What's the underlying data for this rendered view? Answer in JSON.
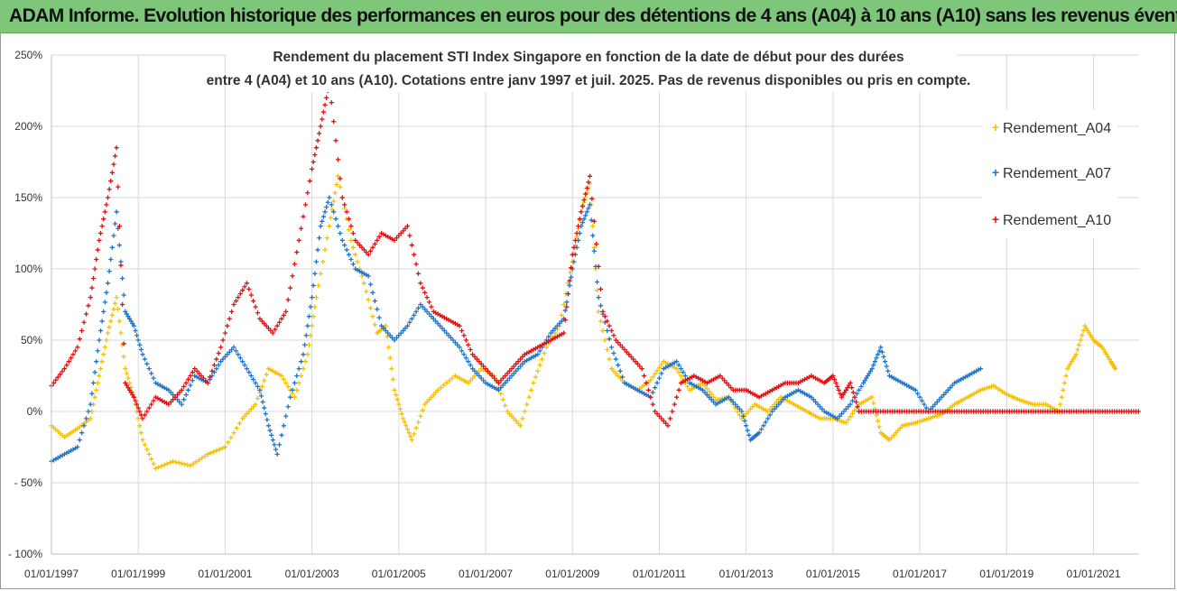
{
  "header": {
    "banner": "ADAM Informe. Evolution historique des performances en euros pour des détentions de 4 ans (A04) à 10 ans (A10) sans les revenus éventuels"
  },
  "chart_data": {
    "type": "scatter",
    "title_line1": "Rendement du placement STI Index Singapore en fonction de la date de début pour des durées",
    "title_line2": "entre 4 (A04) et 10 ans (A10). Cotations entre janv 1997 et juil. 2025. Pas de revenus disponibles ou pris en compte.",
    "xlabel": "",
    "ylabel": "",
    "ylim": [
      -100,
      250
    ],
    "xlim": [
      1997.0,
      2022.05
    ],
    "grid": true,
    "legend_position": "right",
    "y_ticks": [
      {
        "value": 250,
        "label": "250%"
      },
      {
        "value": 200,
        "label": "200%"
      },
      {
        "value": 150,
        "label": "150%"
      },
      {
        "value": 100,
        "label": "100%"
      },
      {
        "value": 50,
        "label": "50%"
      },
      {
        "value": 0,
        "label": "0%"
      },
      {
        "value": -50,
        "label": "- 50%"
      },
      {
        "value": -100,
        "label": "- 100%"
      }
    ],
    "x_ticks": [
      {
        "value": 1997,
        "label": "01/01/1997"
      },
      {
        "value": 1999,
        "label": "01/01/1999"
      },
      {
        "value": 2001,
        "label": "01/01/2001"
      },
      {
        "value": 2003,
        "label": "01/01/2003"
      },
      {
        "value": 2005,
        "label": "01/01/2005"
      },
      {
        "value": 2007,
        "label": "01/01/2007"
      },
      {
        "value": 2009,
        "label": "01/01/2009"
      },
      {
        "value": 2011,
        "label": "01/01/2011"
      },
      {
        "value": 2013,
        "label": "01/01/2013"
      },
      {
        "value": 2015,
        "label": "01/01/2015"
      },
      {
        "value": 2017,
        "label": "01/01/2017"
      },
      {
        "value": 2019,
        "label": "01/01/2019"
      },
      {
        "value": 2021,
        "label": "01/01/2021"
      }
    ],
    "series": [
      {
        "name": "Rendement_A04",
        "color": "#f5c000",
        "x": [
          1997.0,
          1997.3,
          1997.6,
          1997.9,
          1998.1,
          1998.3,
          1998.5,
          1998.7,
          1998.9,
          1999.1,
          1999.4,
          1999.8,
          2000.2,
          2000.6,
          2001.0,
          2001.4,
          2001.7,
          2002.0,
          2002.3,
          2002.6,
          2002.9,
          2003.1,
          2003.4,
          2003.6,
          2003.9,
          2004.2,
          2004.5,
          2004.7,
          2004.9,
          2005.1,
          2005.3,
          2005.6,
          2005.9,
          2006.3,
          2006.6,
          2006.9,
          2007.2,
          2007.5,
          2007.8,
          2008.1,
          2008.4,
          2008.7,
          2009.0,
          2009.2,
          2009.4,
          2009.6,
          2009.9,
          2010.2,
          2010.5,
          2010.8,
          2011.1,
          2011.4,
          2011.7,
          2012.0,
          2012.3,
          2012.6,
          2012.9,
          2013.2,
          2013.5,
          2013.8,
          2014.1,
          2014.4,
          2014.7,
          2015.0,
          2015.3,
          2015.6,
          2015.9,
          2016.1,
          2016.3,
          2016.6,
          2016.9,
          2017.2,
          2017.5,
          2017.8,
          2018.1,
          2018.4,
          2018.7,
          2019.0,
          2019.3,
          2019.6,
          2019.9,
          2020.2,
          2020.4,
          2020.6,
          2020.8,
          2021.0,
          2021.2,
          2021.4,
          2021.5
        ],
        "values": [
          -10,
          -18,
          -12,
          -5,
          25,
          55,
          80,
          30,
          10,
          -20,
          -40,
          -35,
          -38,
          -30,
          -25,
          -5,
          5,
          30,
          25,
          10,
          40,
          80,
          130,
          165,
          120,
          90,
          55,
          60,
          15,
          -5,
          -20,
          5,
          15,
          25,
          20,
          30,
          25,
          0,
          -10,
          20,
          45,
          60,
          105,
          140,
          160,
          70,
          30,
          20,
          15,
          22,
          35,
          30,
          15,
          20,
          8,
          10,
          -5,
          5,
          0,
          10,
          5,
          0,
          -5,
          -5,
          -8,
          5,
          10,
          -15,
          -20,
          -10,
          -8,
          -5,
          -2,
          5,
          10,
          15,
          18,
          12,
          8,
          5,
          5,
          0,
          30,
          40,
          60,
          50,
          45,
          35,
          30
        ]
      },
      {
        "name": "Rendement_A07",
        "color": "#1f74c7",
        "x": [
          1997.0,
          1997.3,
          1997.6,
          1997.9,
          1998.1,
          1998.3,
          1998.5,
          1998.7,
          1998.9,
          1999.1,
          1999.4,
          1999.7,
          2000.0,
          2000.3,
          2000.6,
          2000.9,
          2001.2,
          2001.5,
          2001.8,
          2002.0,
          2002.2,
          2002.5,
          2002.8,
          2003.0,
          2003.2,
          2003.4,
          2003.7,
          2004.0,
          2004.3,
          2004.6,
          2004.9,
          2005.2,
          2005.5,
          2005.8,
          2006.1,
          2006.4,
          2006.7,
          2007.0,
          2007.3,
          2007.6,
          2007.9,
          2008.2,
          2008.5,
          2008.8,
          2009.0,
          2009.2,
          2009.4,
          2009.6,
          2009.9,
          2010.2,
          2010.5,
          2010.8,
          2011.1,
          2011.4,
          2011.7,
          2012.0,
          2012.3,
          2012.6,
          2012.9,
          2013.1,
          2013.3,
          2013.6,
          2013.9,
          2014.2,
          2014.5,
          2014.8,
          2015.1,
          2015.4,
          2015.7,
          2015.9,
          2016.1,
          2016.3,
          2016.6,
          2016.9,
          2017.2,
          2017.5,
          2017.8,
          2018.1,
          2018.4
        ],
        "values": [
          -35,
          -30,
          -25,
          5,
          50,
          90,
          140,
          70,
          60,
          40,
          20,
          15,
          5,
          25,
          20,
          35,
          45,
          30,
          15,
          -10,
          -30,
          10,
          40,
          80,
          130,
          150,
          120,
          100,
          95,
          60,
          50,
          60,
          75,
          65,
          55,
          45,
          30,
          20,
          15,
          25,
          35,
          40,
          55,
          65,
          100,
          130,
          145,
          80,
          45,
          20,
          15,
          10,
          30,
          35,
          20,
          15,
          5,
          10,
          0,
          -20,
          -15,
          0,
          10,
          15,
          10,
          0,
          -5,
          5,
          20,
          30,
          45,
          25,
          20,
          15,
          0,
          10,
          20,
          25,
          30
        ]
      },
      {
        "name": "Rendement_A10",
        "color": "#e01010",
        "x": [
          1997.0,
          1997.3,
          1997.6,
          1997.9,
          1998.1,
          1998.3,
          1998.5,
          1998.7,
          1998.9,
          1999.1,
          1999.4,
          1999.7,
          2000.0,
          2000.3,
          2000.6,
          2000.9,
          2001.2,
          2001.5,
          2001.8,
          2002.1,
          2002.4,
          2002.7,
          2003.0,
          2003.2,
          2003.4,
          2003.7,
          2004.0,
          2004.3,
          2004.6,
          2004.9,
          2005.2,
          2005.5,
          2005.8,
          2006.1,
          2006.4,
          2006.7,
          2007.0,
          2007.3,
          2007.6,
          2007.9,
          2008.2,
          2008.5,
          2008.8,
          2009.0,
          2009.2,
          2009.4,
          2009.7,
          2010.0,
          2010.3,
          2010.6,
          2010.9,
          2011.2,
          2011.5,
          2011.8,
          2012.1,
          2012.4,
          2012.7,
          2013.0,
          2013.3,
          2013.6,
          2013.9,
          2014.2,
          2014.5,
          2014.8,
          2015.0,
          2015.2,
          2015.4,
          2015.6
        ],
        "values": [
          18,
          30,
          45,
          80,
          120,
          150,
          185,
          20,
          10,
          -5,
          10,
          5,
          15,
          30,
          20,
          45,
          75,
          90,
          65,
          55,
          70,
          120,
          170,
          200,
          230,
          150,
          120,
          110,
          125,
          120,
          130,
          90,
          70,
          65,
          60,
          40,
          30,
          20,
          30,
          40,
          45,
          50,
          55,
          110,
          140,
          165,
          70,
          50,
          40,
          30,
          0,
          -10,
          20,
          25,
          20,
          25,
          15,
          15,
          10,
          15,
          20,
          20,
          25,
          20,
          25,
          10,
          20,
          0
        ]
      },
      {
        "name": "Rendement_A10 (flat)",
        "color": "#e01010",
        "flat_from": 2015.6,
        "flat_to": 2022.05,
        "flat_value": 0
      }
    ]
  },
  "legend": [
    {
      "label": "Rendement_A04",
      "color": "#f5c000"
    },
    {
      "label": "Rendement_A07",
      "color": "#1f74c7"
    },
    {
      "label": "Rendement_A10",
      "color": "#e01010"
    }
  ]
}
